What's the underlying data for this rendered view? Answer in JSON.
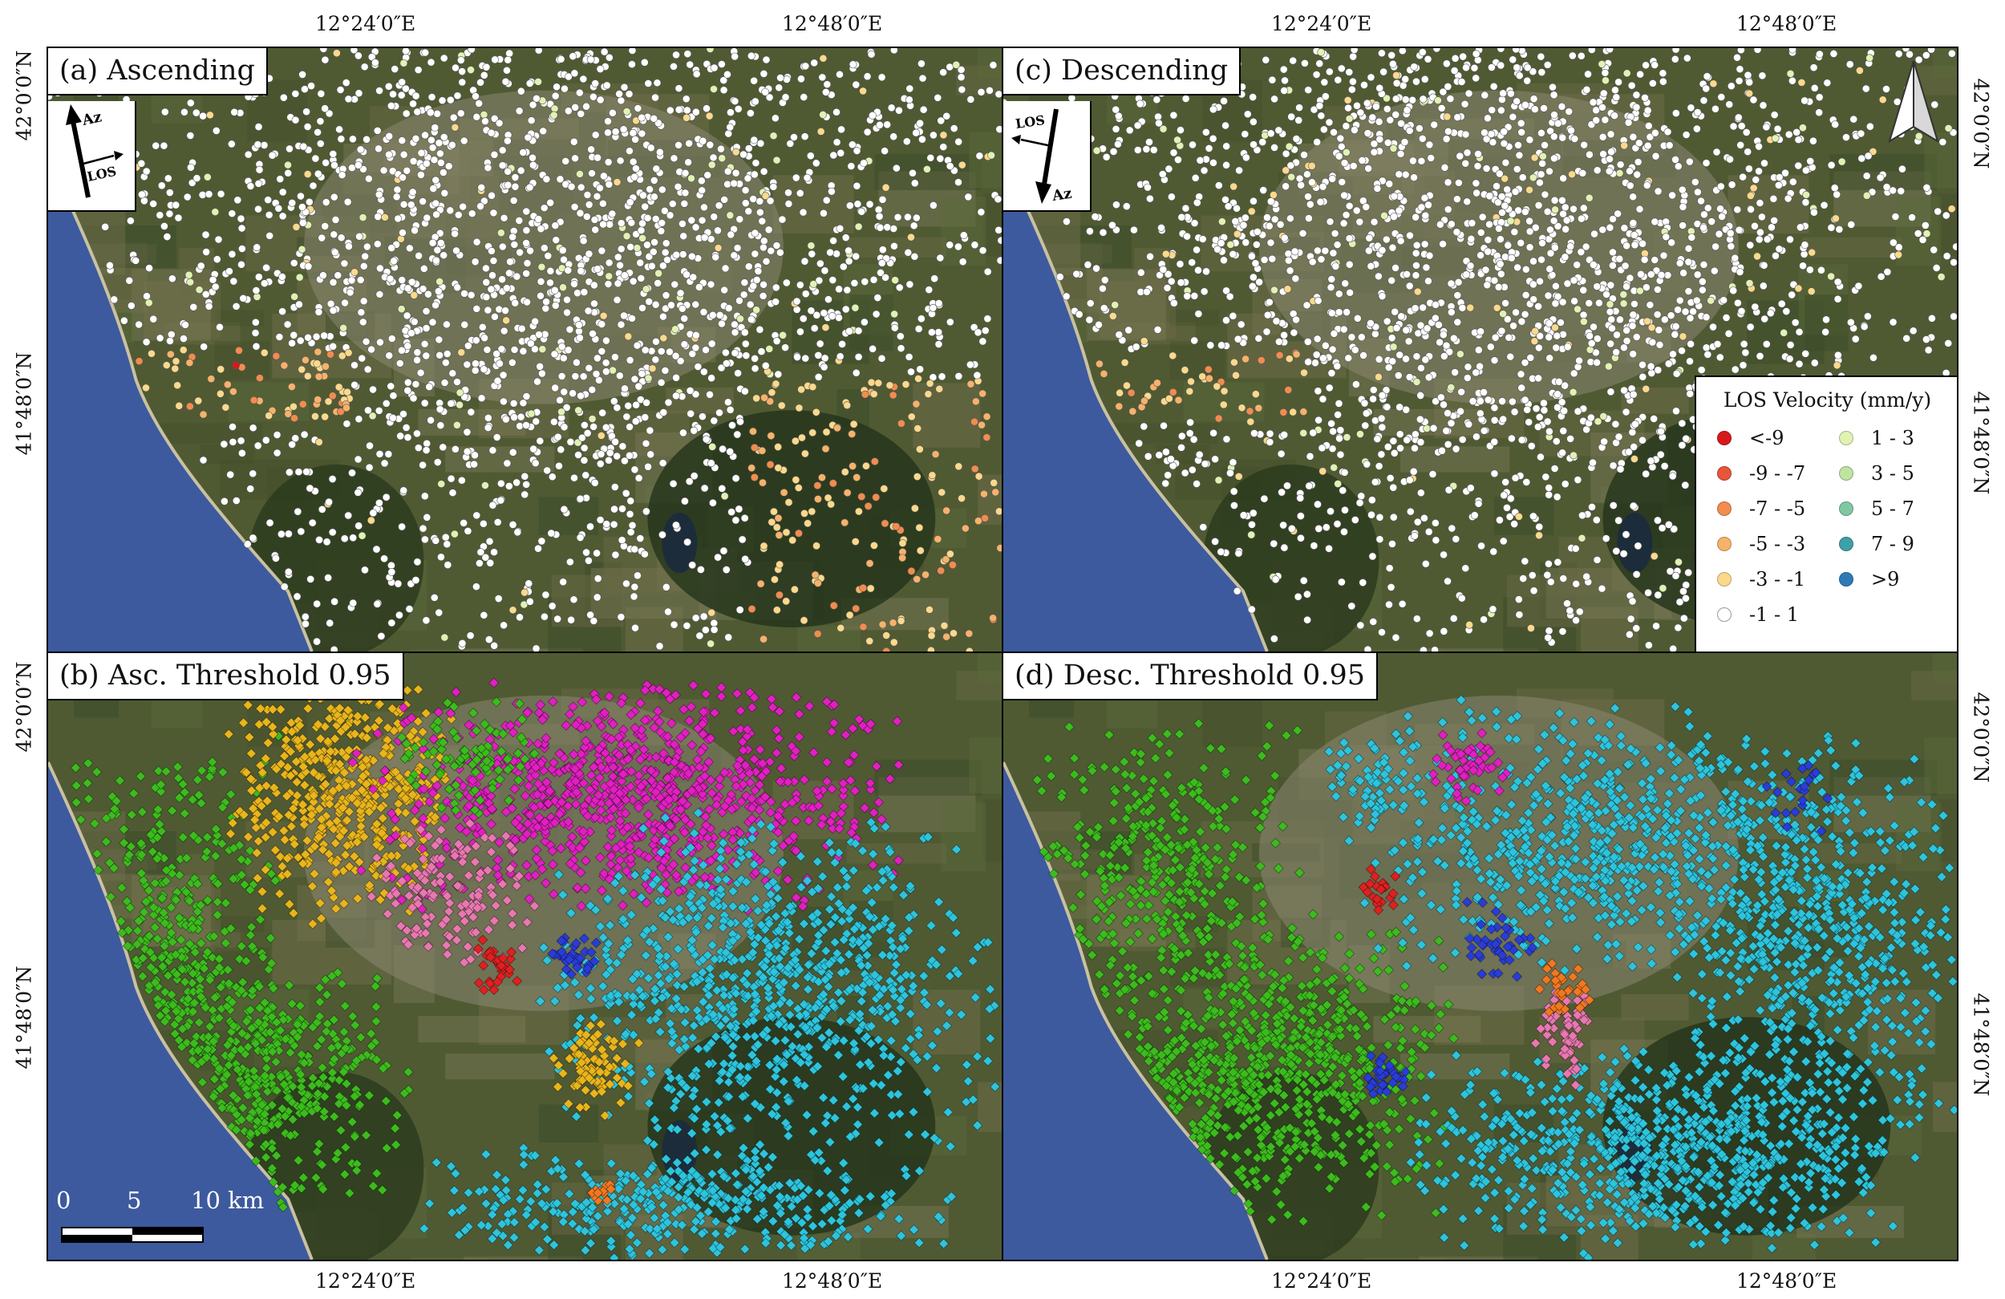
{
  "coords": {
    "top_lon_left_1": "12°24′0″E",
    "top_lon_left_2": "12°48′0″E",
    "top_lon_right_1": "12°24′0″E",
    "top_lon_right_2": "12°48′0″E",
    "bottom_lon_left_1": "12°24′0″E",
    "bottom_lon_left_2": "12°48′0″E",
    "bottom_lon_right_1": "12°24′0″E",
    "bottom_lon_right_2": "12°48′0″E",
    "left_lat_1": "42°0′0″N",
    "left_lat_2": "41°48′0″N",
    "left_lat_3": "42°0′0″N",
    "left_lat_4": "41°48′0″N",
    "right_lat_1": "42°0′0″N",
    "right_lat_2": "41°48′0″N",
    "right_lat_3": "42°0′0″N",
    "right_lat_4": "41°48′0″N"
  },
  "panels": {
    "a": {
      "title": "(a) Ascending",
      "arrow_az": "Az",
      "arrow_los": "LOS"
    },
    "b": {
      "title": "(b) Asc. Threshold 0.95"
    },
    "c": {
      "title": "(c) Descending",
      "arrow_az": "Az",
      "arrow_los": "LOS"
    },
    "d": {
      "title": "(d) Desc. Threshold 0.95"
    }
  },
  "legend": {
    "title": "LOS Velocity (mm/y)",
    "items": [
      {
        "label": "<-9",
        "color": "#d7191c"
      },
      {
        "label": "-9 - -7",
        "color": "#e8553a"
      },
      {
        "label": "-7 - -5",
        "color": "#f28c4f"
      },
      {
        "label": "-5 - -3",
        "color": "#f6b26b"
      },
      {
        "label": "-3 - -1",
        "color": "#fbd98c"
      },
      {
        "label": "-1 - 1",
        "color": "#ffffff"
      },
      {
        "label": "1 - 3",
        "color": "#e1f2b3"
      },
      {
        "label": "3 - 5",
        "color": "#bfe3a0"
      },
      {
        "label": "5 - 7",
        "color": "#7fc8a2"
      },
      {
        "label": "7 - 9",
        "color": "#3ea0a8"
      },
      {
        "label": ">9",
        "color": "#2c7bb6"
      }
    ]
  },
  "scale_bar": {
    "labels": [
      "0",
      "5",
      "10 km"
    ]
  },
  "colors": {
    "sea": "#3d5a9e",
    "land": "#4f5a33",
    "urban": "#8a8670",
    "cluster_green": "#3dbb1e",
    "cluster_magenta": "#e020c0",
    "cluster_yellow": "#e8b51c",
    "cluster_cyan": "#2ec4dc",
    "cluster_blue": "#2a3cd8",
    "cluster_pink": "#e878b0",
    "cluster_red": "#e02020",
    "cluster_orange": "#f07820"
  },
  "icons": {
    "north_arrow": "north-arrow-icon",
    "azimuth_arrow": "arrow-icon"
  }
}
